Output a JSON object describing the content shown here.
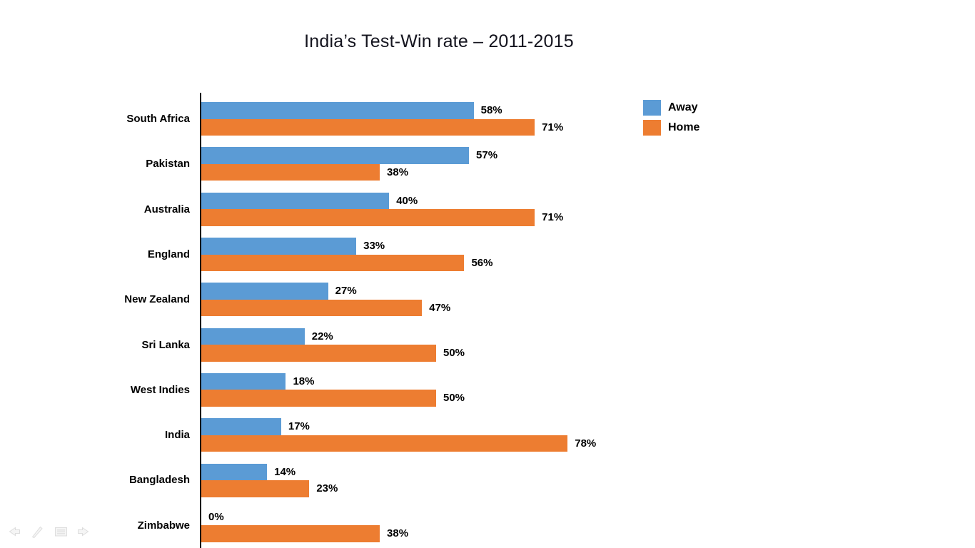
{
  "slide": {
    "background": "#ffffff"
  },
  "chart_data": {
    "type": "bar",
    "orientation": "horizontal",
    "title": "India’s Test-Win rate – 2011-2015",
    "categories": [
      "South Africa",
      "Pakistan",
      "Australia",
      "England",
      "New Zealand",
      "Sri Lanka",
      "West Indies",
      "India",
      "Bangladesh",
      "Zimbabwe"
    ],
    "series": [
      {
        "name": "Away",
        "color": "#5B9BD5",
        "values": [
          58,
          57,
          40,
          33,
          27,
          22,
          18,
          17,
          14,
          0
        ]
      },
      {
        "name": "Home",
        "color": "#ED7D31",
        "values": [
          71,
          38,
          71,
          56,
          47,
          50,
          50,
          78,
          23,
          38
        ]
      }
    ],
    "value_suffix": "%",
    "xlim": [
      0,
      100
    ],
    "grid": false,
    "legend_position": "top-right",
    "axis_line_color": "#000000",
    "data_label_color": "#000000",
    "category_label_color": "#000000",
    "title_color": "#14141e"
  },
  "presenter_toolbar": {
    "icons": [
      "previous-slide-arrow-icon",
      "pen-icon",
      "slide-navigator-icon",
      "next-slide-arrow-icon"
    ]
  }
}
